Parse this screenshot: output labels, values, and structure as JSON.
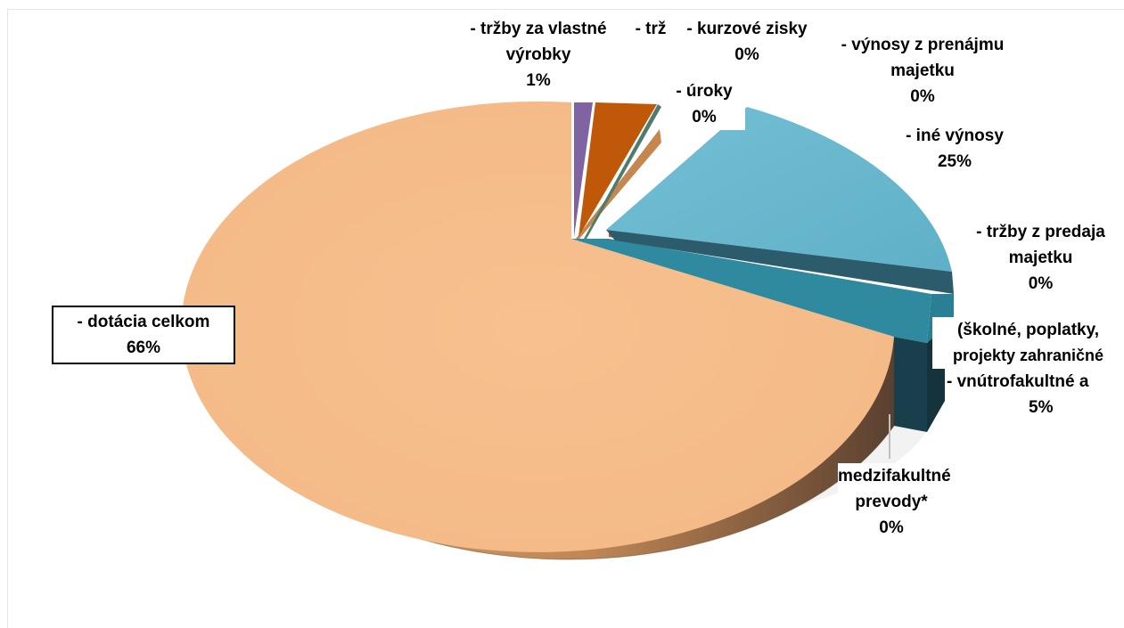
{
  "chart_data": {
    "type": "pie",
    "title": "",
    "slices": [
      {
        "label": "- tržby za vlastné výrobky",
        "pct_label": "1%",
        "value": 1,
        "color": "#8064a2"
      },
      {
        "label": "- trž",
        "pct_label": "",
        "value": 2,
        "color": "#c0580a"
      },
      {
        "label": "- kurzové zisky",
        "pct_label": "0%",
        "value": 0.2,
        "color": "#4e7b6e"
      },
      {
        "label": "- úroky",
        "pct_label": "0%",
        "value": 0.2,
        "color": "#c6864f"
      },
      {
        "label": "- výnosy z prenájmu majetku",
        "pct_label": "0%",
        "value": 0.2,
        "color": "#4bacc6"
      },
      {
        "label": "- iné výnosy",
        "pct_label": "25%",
        "value": 25,
        "color": "#6bb9cf"
      },
      {
        "label": "- tržby z predaja majetku",
        "pct_label": "0%",
        "value": 0.4,
        "color": "#c0580a"
      },
      {
        "label": "(školné, poplatky, projekty zahraničné",
        "pct_label": "",
        "value": 0.3,
        "color": "#2b8fa6"
      },
      {
        "label": "- vnútrofakultné a",
        "pct_label": "5%",
        "value": 5,
        "color": "#2f8aa0"
      },
      {
        "label": "medzifakultné prevody*",
        "pct_label": "0%",
        "value": 0.2,
        "color": "#9aa0a3"
      },
      {
        "label": "- dotácia celkom",
        "pct_label": "66%",
        "value": 66,
        "color": "#f6bd8a"
      }
    ],
    "legend": "none"
  },
  "labels": {
    "vyrobky_line1": "- tržby za vlastné",
    "vyrobky_line2": "výrobky",
    "vyrobky_pct": "1%",
    "trz": "- trž",
    "kurzove_line1": "- kurzové zisky",
    "kurzove_pct": "0%",
    "uroky_line1": "- úroky",
    "uroky_pct": "0%",
    "prenajom_line1": "- výnosy z prenájmu",
    "prenajom_line2": "majetku",
    "prenajom_pct": "0%",
    "ine_line1": "- iné výnosy",
    "ine_pct": "25%",
    "predaj_line1": "- tržby z predaja",
    "predaj_line2": "majetku",
    "predaj_pct": "0%",
    "skolne_line1": "(školné, poplatky,",
    "skolne_line2": "projekty zahraničné",
    "vnutro_line1": "- vnútrofakultné a",
    "vnutro_pct": "5%",
    "medzi_line1": "medzifakultné",
    "medzi_line2": "prevody*",
    "medzi_pct": "0%",
    "dotacia_line1": "- dotácia celkom",
    "dotacia_pct": "66%"
  }
}
